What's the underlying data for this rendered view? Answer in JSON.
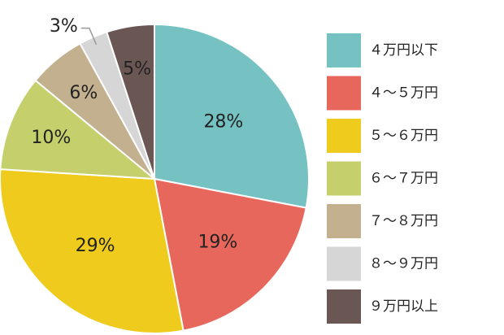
{
  "chart_data": {
    "type": "pie",
    "title": "",
    "legend_position": "right",
    "slices": [
      {
        "name": "４万円以下",
        "value": 28,
        "label": "28%",
        "color": "#76C2C3"
      },
      {
        "name": "４～５万円",
        "value": 19,
        "label": "19%",
        "color": "#E8675C"
      },
      {
        "name": "５～６万円",
        "value": 29,
        "label": "29%",
        "color": "#EECB1C"
      },
      {
        "name": "６～７万円",
        "value": 10,
        "label": "10%",
        "color": "#C5D06C"
      },
      {
        "name": "７～８万円",
        "value": 6,
        "label": "6%",
        "color": "#C2B08E"
      },
      {
        "name": "８～９万円",
        "value": 3,
        "label": "3%",
        "color": "#D6D6D6"
      },
      {
        "name": "９万円以上",
        "value": 5,
        "label": "5%",
        "color": "#6A5652"
      }
    ]
  }
}
